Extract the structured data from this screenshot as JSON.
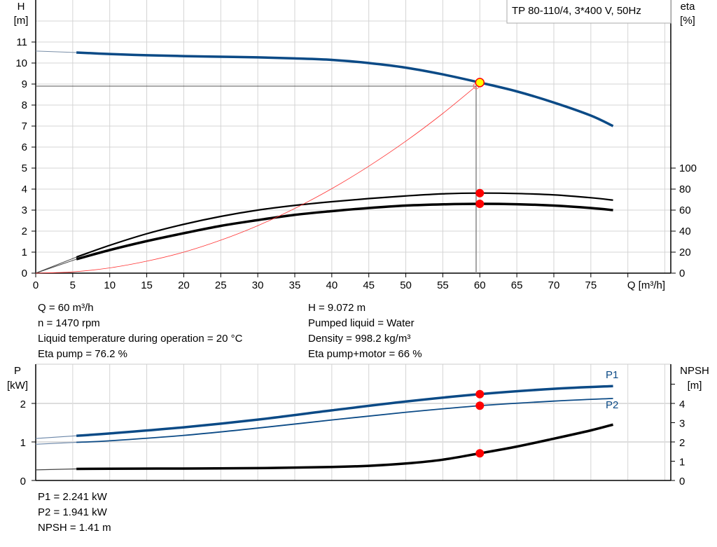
{
  "chart_data": [
    {
      "type": "line",
      "title": "TP 80-110/4, 3*400 V, 50Hz",
      "xlabel": "Q [m³/h]",
      "ylabel": "H\n[m]",
      "ylabel_lines": [
        "H",
        "[m]"
      ],
      "y2label_lines": [
        "eta",
        "[%]"
      ],
      "xlim": [
        0,
        85.8
      ],
      "ylim": [
        0,
        13
      ],
      "y2lim": [
        0,
        100
      ],
      "grid": true,
      "x_ticks": [
        0,
        5,
        10,
        15,
        20,
        25,
        30,
        35,
        40,
        45,
        50,
        55,
        60,
        65,
        70,
        75
      ],
      "y_ticks": [
        0,
        1,
        2,
        3,
        4,
        5,
        6,
        7,
        8,
        9,
        10,
        11
      ],
      "y2_ticks": [
        0,
        20,
        40,
        60,
        80,
        100
      ],
      "series": [
        {
          "key": "H",
          "axis": "left",
          "color": "#0b4a86",
          "x": [
            5.5,
            10,
            15,
            20,
            25,
            30,
            35,
            40,
            45,
            50,
            55,
            60,
            65,
            70,
            75,
            78
          ],
          "y": [
            10.5,
            10.43,
            10.37,
            10.33,
            10.3,
            10.27,
            10.22,
            10.15,
            10.0,
            9.78,
            9.46,
            9.072,
            8.65,
            8.12,
            7.5,
            7.0
          ],
          "extrapolate_from": [
            0,
            10.57
          ]
        },
        {
          "key": "eta_pump",
          "axis": "right",
          "color": "#000000",
          "x": [
            5.5,
            10,
            15,
            20,
            25,
            30,
            35,
            40,
            45,
            50,
            55,
            60,
            65,
            70,
            75,
            78
          ],
          "y": [
            15.3,
            26.5,
            37.5,
            46.5,
            54,
            60,
            64.5,
            68,
            71,
            73.5,
            75.5,
            76.2,
            75.8,
            74.5,
            71.8,
            69.5
          ],
          "extrapolate_from": [
            0,
            0
          ]
        },
        {
          "key": "eta_pump_motor",
          "axis": "right",
          "color": "#000000",
          "x": [
            5.5,
            10,
            15,
            20,
            25,
            30,
            35,
            40,
            45,
            50,
            55,
            60,
            65,
            70,
            75,
            78
          ],
          "y": [
            13.3,
            22,
            30.5,
            38,
            45,
            50.5,
            55.5,
            59,
            62,
            64.3,
            65.5,
            66,
            65.6,
            64.3,
            62,
            60
          ],
          "extrapolate_from": [
            0,
            0
          ]
        },
        {
          "key": "system",
          "axis": "left",
          "color": "#ff3333",
          "x": [
            0,
            5,
            10,
            15,
            20,
            25,
            30,
            35,
            40,
            45,
            50,
            55,
            59.5
          ],
          "y": [
            0,
            0.06,
            0.25,
            0.57,
            1.0,
            1.57,
            2.26,
            3.08,
            4.02,
            5.09,
            6.28,
            7.6,
            8.9
          ]
        }
      ],
      "duty_point": {
        "Q": 60,
        "H": 9.072,
        "eta_pump": 76.2,
        "eta_pump_motor": 66
      },
      "system_end": {
        "Q": 59.5,
        "H": 8.9
      }
    },
    {
      "type": "line",
      "ylabel_lines": [
        "P",
        "[kW]"
      ],
      "y2label_lines": [
        "NPSH",
        "[m]"
      ],
      "xlim": [
        0,
        85.8
      ],
      "ylim": [
        0,
        3
      ],
      "y2lim": [
        0,
        6
      ],
      "grid": true,
      "y_ticks": [
        0,
        1,
        2
      ],
      "y2_ticks": [
        0,
        1,
        2,
        3,
        4,
        5
      ],
      "y2_tick_labels": [
        "0",
        "1",
        "2",
        "3",
        "4",
        ""
      ],
      "series": [
        {
          "key": "P1",
          "name": "P1",
          "axis": "left",
          "color": "#0b4a86",
          "width": 3.5,
          "x": [
            5.5,
            10,
            20,
            30,
            40,
            50,
            60,
            70,
            78
          ],
          "y": [
            1.16,
            1.22,
            1.38,
            1.58,
            1.82,
            2.05,
            2.241,
            2.38,
            2.45
          ],
          "extrapolate_from": [
            0,
            1.09
          ]
        },
        {
          "key": "P2",
          "name": "P2",
          "axis": "left",
          "color": "#0b4a86",
          "width": 1.8,
          "x": [
            5.5,
            10,
            20,
            30,
            40,
            50,
            60,
            70,
            78
          ],
          "y": [
            0.99,
            1.03,
            1.17,
            1.36,
            1.57,
            1.77,
            1.941,
            2.06,
            2.13
          ],
          "extrapolate_from": [
            0,
            0.94
          ]
        },
        {
          "key": "NPSH",
          "axis": "right",
          "color": "#000000",
          "width": 3.5,
          "x": [
            5.5,
            10,
            20,
            30,
            40,
            45,
            50,
            55,
            60,
            65,
            70,
            75,
            78
          ],
          "y": [
            0.6,
            0.61,
            0.62,
            0.64,
            0.7,
            0.76,
            0.88,
            1.08,
            1.41,
            1.76,
            2.17,
            2.6,
            2.9
          ],
          "extrapolate_from": [
            0,
            0.55
          ]
        }
      ],
      "duty_point": {
        "Q": 60,
        "P1": 2.241,
        "P2": 1.941,
        "NPSH": 1.41
      }
    }
  ],
  "colors": {
    "head": "#0b4a86",
    "duty_marker": "#ff0000",
    "duty_fill": "#ffff00",
    "system": "#ff3333",
    "grid": "#d4d4d4"
  },
  "info_top_left": [
    "Q = 60 m³/h",
    "n = 1470 rpm",
    "Liquid temperature during operation = 20 °C",
    "Eta pump = 76.2 %"
  ],
  "info_top_right": [
    "H = 9.072 m",
    "Pumped liquid = Water",
    "Density = 998.2 kg/m³",
    "Eta pump+motor = 66 %"
  ],
  "info_bottom": [
    "P1 = 2.241 kW",
    "P2 = 1.941 kW",
    "NPSH = 1.41 m"
  ]
}
